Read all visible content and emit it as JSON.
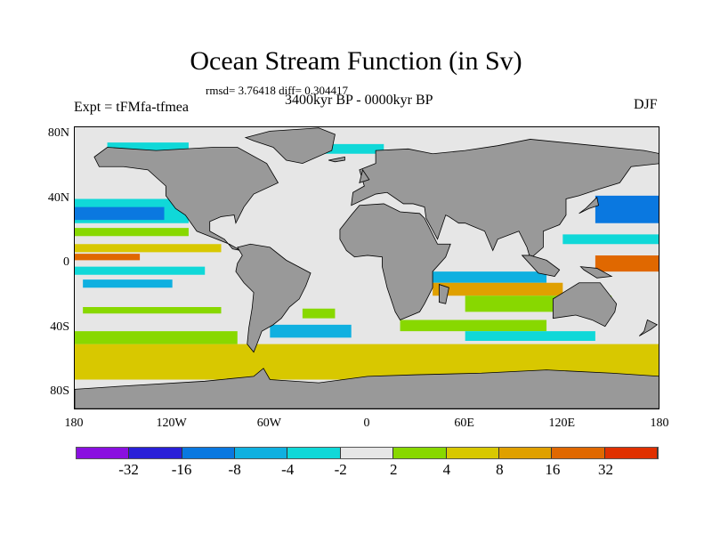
{
  "title": "Ocean Stream Function (in Sv)",
  "subtitle": {
    "rmsd": "rmsd= 3.76418 diff= 0.304417",
    "experiment": "Expt = tFMfa-tfmea",
    "period": "3400kyr BP - 0000kyr BP",
    "season": "DJF"
  },
  "map": {
    "ocean_background": "#e6e6e6",
    "land_color": "#999999",
    "lat_labels": [
      "80N",
      "40N",
      "0",
      "40S",
      "80S"
    ],
    "lon_labels": [
      "180",
      "120W",
      "60W",
      "0",
      "60E",
      "120E",
      "180"
    ]
  },
  "colorbar": {
    "colors": [
      "#8a10e0",
      "#2a20d8",
      "#0a78e0",
      "#10b0e0",
      "#10d8d8",
      "#e6e6e6",
      "#88d800",
      "#d8c800",
      "#e0a000",
      "#e06800",
      "#e03000"
    ],
    "labels": [
      "-32",
      "-16",
      "-8",
      "-4",
      "-2",
      "2",
      "4",
      "8",
      "16",
      "32"
    ]
  }
}
